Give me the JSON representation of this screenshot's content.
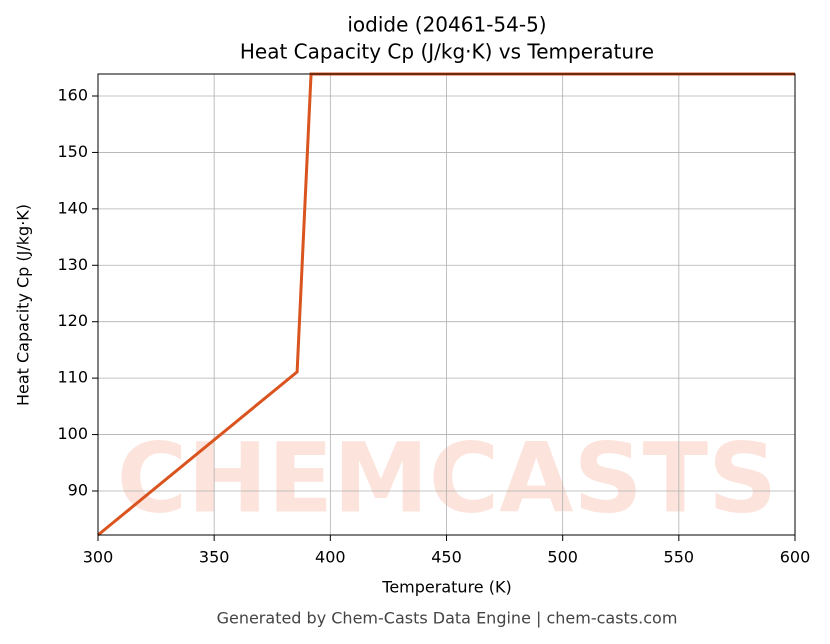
{
  "chart_data": {
    "type": "line",
    "title": "iodide (20461-54-5)",
    "subtitle": "Heat Capacity Cp (J/kg·K) vs Temperature",
    "x_label": "Temperature (K)",
    "y_label": "Heat Capacity Cp (J/kg·K)",
    "footer": "Generated by Chem-Casts Data Engine | chem-casts.com",
    "watermark": "CHEMCASTS",
    "x": [
      300,
      385.7,
      391.7,
      600
    ],
    "series": [
      {
        "name": "Heat Capacity Cp",
        "color": "#d9541e",
        "values": [
          82.2,
          111.1,
          163.9,
          163.9
        ]
      }
    ],
    "xlim": [
      300,
      600
    ],
    "xticks": [
      300,
      350,
      400,
      450,
      500,
      550,
      600
    ],
    "ylim": [
      82.2,
      163.9
    ],
    "yticks": [
      90,
      100,
      110,
      120,
      130,
      140,
      150,
      160
    ],
    "grid": true
  }
}
